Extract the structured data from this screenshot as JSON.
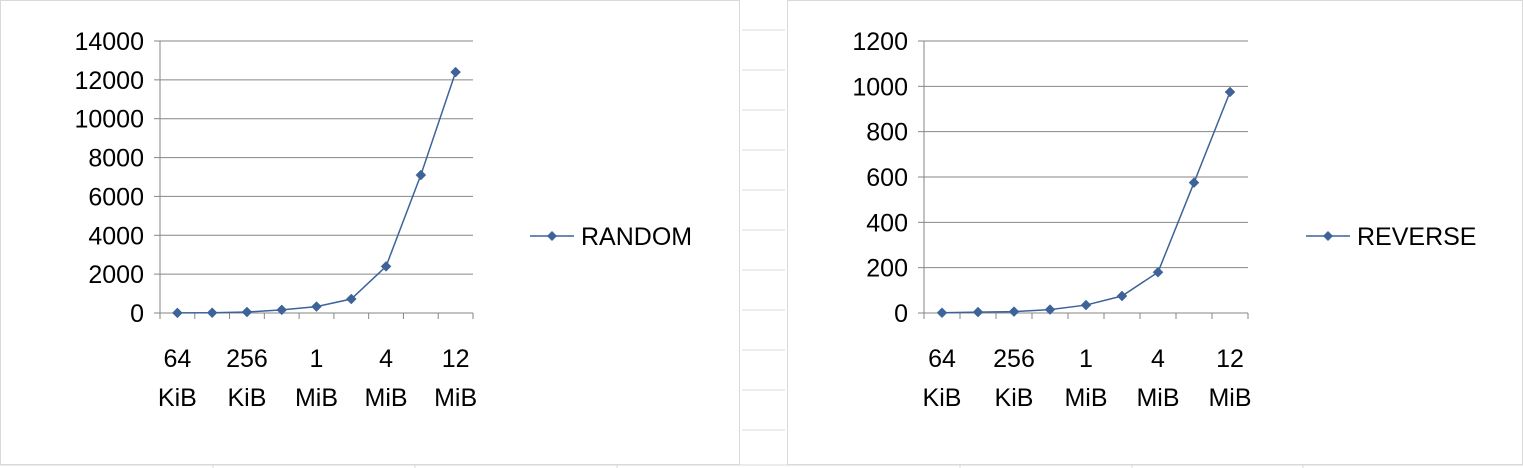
{
  "charts": [
    {
      "id": "random",
      "chart_data": {
        "type": "line",
        "title": "",
        "xlabel": "",
        "ylabel": "",
        "ylim": [
          0,
          14000
        ],
        "y_ticks": [
          0,
          2000,
          4000,
          6000,
          8000,
          10000,
          12000,
          14000
        ],
        "x_tick_labels": [
          [
            "64",
            "KiB"
          ],
          [
            "256",
            "KiB"
          ],
          [
            "1",
            "MiB"
          ],
          [
            "4",
            "MiB"
          ],
          [
            "12",
            "MiB"
          ]
        ],
        "x_tick_positions": [
          0,
          2,
          4,
          6,
          8
        ],
        "grid": true,
        "legend_position": "right",
        "series": [
          {
            "name": "RANDOM",
            "color": "#3d6399",
            "x": [
              0,
              1,
              2,
              3,
              4,
              5,
              6,
              7,
              8
            ],
            "values": [
              5,
              15,
              50,
              160,
              330,
              720,
              2400,
              7100,
              12400
            ]
          }
        ]
      }
    },
    {
      "id": "reverse",
      "chart_data": {
        "type": "line",
        "title": "",
        "xlabel": "",
        "ylabel": "",
        "ylim": [
          0,
          1200
        ],
        "y_ticks": [
          0,
          200,
          400,
          600,
          800,
          1000,
          1200
        ],
        "x_tick_labels": [
          [
            "64",
            "KiB"
          ],
          [
            "256",
            "KiB"
          ],
          [
            "1",
            "MiB"
          ],
          [
            "4",
            "MiB"
          ],
          [
            "12",
            "MiB"
          ]
        ],
        "x_tick_positions": [
          0,
          2,
          4,
          6,
          8
        ],
        "grid": true,
        "legend_position": "right",
        "series": [
          {
            "name": "REVERSE",
            "color": "#3d6399",
            "x": [
              0,
              1,
              2,
              3,
              4,
              5,
              6,
              7,
              8
            ],
            "values": [
              1,
              4,
              6,
              15,
              35,
              75,
              180,
              575,
              975
            ]
          }
        ]
      }
    }
  ]
}
